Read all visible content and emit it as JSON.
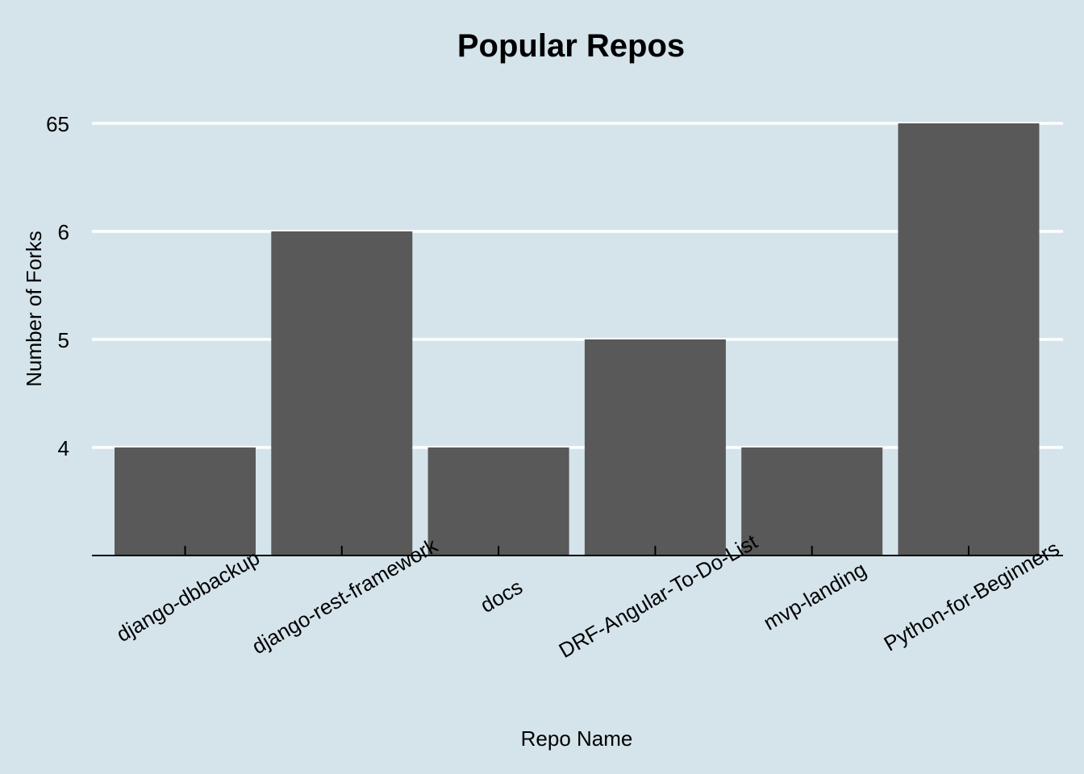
{
  "chart_data": {
    "type": "bar",
    "title": "Popular Repos",
    "xlabel": "Repo Name",
    "ylabel": "Number of Forks",
    "categories": [
      "django-dbbackup",
      "django-rest-framework",
      "docs",
      "DRF-Angular-To-Do-List",
      "mvp-landing",
      "Python-for-Beginners"
    ],
    "values": [
      4,
      6,
      4,
      5,
      4,
      65
    ],
    "y_ticks": [
      "4",
      "5",
      "6",
      "65"
    ],
    "bar_color": "#595959",
    "background_color": "#d5e4eb",
    "grid": true,
    "legend": "none"
  }
}
